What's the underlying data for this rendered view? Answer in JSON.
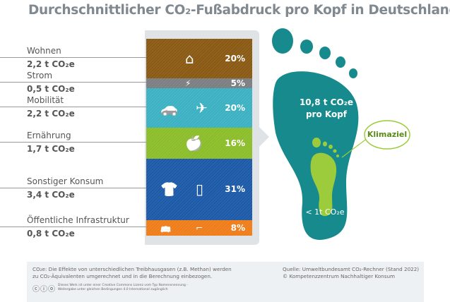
{
  "title": "Durchschnittlicher CO₂-Fußabdruck pro Kopf in Deutschland",
  "chart_data": {
    "type": "bar",
    "stacked": true,
    "title": "Durchschnittlicher CO₂-Fußabdruck pro Kopf in Deutschland",
    "categories": [
      "Wohnen",
      "Strom",
      "Mobilität",
      "Ernährung",
      "Sonstiger Konsum",
      "Öffentliche Infrastruktur"
    ],
    "values_t": [
      2.2,
      0.5,
      2.2,
      1.7,
      3.4,
      0.8
    ],
    "value_labels": [
      "2,2 t CO₂e",
      "0,5 t CO₂e",
      "2,2 t CO₂e",
      "1,7 t CO₂e",
      "3,4 t CO₂e",
      "0,8 t CO₂e"
    ],
    "percent_labels": [
      "20%",
      "5%",
      "20%",
      "16%",
      "31%",
      "8%"
    ],
    "percents": [
      20,
      5,
      20,
      16,
      31,
      8
    ],
    "colors": [
      "#8a5a14",
      "#7c7f82",
      "#3cb1c2",
      "#8cbd2a",
      "#1c5aa8",
      "#ef7d1a"
    ],
    "icons": [
      [
        "house-icon"
      ],
      [
        "plug-icon"
      ],
      [
        "car-icon",
        "plane-icon"
      ],
      [
        "food-icon"
      ],
      [
        "shirt-icon",
        "phone-icon"
      ],
      [
        "bus-icon",
        "streetlight-icon"
      ]
    ]
  },
  "footprint": {
    "total": "10,8 t CO₂e",
    "per": "pro Kopf",
    "goal_label": "Klimaziel",
    "goal_value": "< 1t CO₂e",
    "color": "#168a8c",
    "goal_color": "#9ccc3c"
  },
  "footer": {
    "note1": "CO₂e: Die Effekte von unterschiedlichen Treibhausgasen (z.B. Methan) werden",
    "note2": "zu CO₂-Äquivalenten umgerechnet und in die Berechnung einbezogen.",
    "license1": "Dieses Werk ist unter einer Creative Commons Lizenz vom Typ Namensnennung -",
    "license2": "Weitergabe unter gleichen Bedingungen 4.0 International zugänglich",
    "cc": "cc",
    "source": "Quelle: Umweltbundesamt CO₂-Rechner (Stand 2022)",
    "copyright": "© Kompetenzzentrum Nachhaltiger Konsum"
  }
}
